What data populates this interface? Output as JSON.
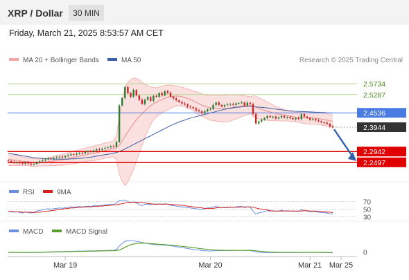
{
  "header": {
    "symbol": "XRP / Dollar",
    "interval": "30 MIN",
    "timestamp": "Friday, March 21, 2025 8:53:57 AM CET"
  },
  "colors": {
    "bollinger": "#f4a6a6",
    "ma50": "#3b5fa8",
    "candle_up": "#2e7d32",
    "candle_down": "#c62828",
    "resistance": "#b5d78f",
    "pivot": "#4a7be0",
    "support": "#e00000",
    "rsi": "#6b8ee0",
    "rsi_ma": "#d02020",
    "macd": "#6b8ee0",
    "macd_signal": "#5aa02c",
    "arrow": "#2f5fa8"
  },
  "chart_data": [
    {
      "type": "candlestick",
      "legend": [
        {
          "name": "MA 20 + Bollinger Bands",
          "color": "#f4a6a6"
        },
        {
          "name": "MA 50",
          "color": "#3b5fa8"
        }
      ],
      "credit": "Research © 2025 Trading Central",
      "x_ticks": [
        "Mar 19",
        "Mar 20",
        "Mar 21",
        "Mar 25"
      ],
      "ylim": [
        2.235,
        2.605
      ],
      "levels": [
        {
          "value": 2.5734,
          "label": "2.5734",
          "kind": "resistance"
        },
        {
          "value": 2.5287,
          "label": "2.5287",
          "kind": "resistance"
        },
        {
          "value": 2.4536,
          "label": "2.4536",
          "kind": "pivot"
        },
        {
          "value": 2.3944,
          "label": "2.3944",
          "kind": "last"
        },
        {
          "value": 2.2942,
          "label": "2.2942",
          "kind": "support"
        },
        {
          "value": 2.2497,
          "label": "2.2497",
          "kind": "support"
        }
      ],
      "close": [
        2.255,
        2.252,
        2.248,
        2.25,
        2.246,
        2.244,
        2.249,
        2.245,
        2.241,
        2.243,
        2.25,
        2.254,
        2.258,
        2.262,
        2.266,
        2.264,
        2.268,
        2.271,
        2.273,
        2.27,
        2.276,
        2.279,
        2.283,
        2.281,
        2.285,
        2.289,
        2.287,
        2.292,
        2.295,
        2.293,
        2.299,
        2.303,
        2.301,
        2.306,
        2.309,
        2.312,
        2.316,
        2.314,
        2.334,
        2.484,
        2.515,
        2.56,
        2.535,
        2.52,
        2.548,
        2.525,
        2.507,
        2.49,
        2.508,
        2.518,
        2.503,
        2.523,
        2.52,
        2.535,
        2.525,
        2.543,
        2.536,
        2.52,
        2.513,
        2.505,
        2.498,
        2.492,
        2.488,
        2.479,
        2.477,
        2.472,
        2.464,
        2.46,
        2.453,
        2.46,
        2.468,
        2.47,
        2.486,
        2.496,
        2.486,
        2.48,
        2.485,
        2.488,
        2.49,
        2.486,
        2.493,
        2.494,
        2.496,
        2.484,
        2.495,
        2.49,
        2.449,
        2.41,
        2.418,
        2.425,
        2.432,
        2.44,
        2.436,
        2.438,
        2.43,
        2.435,
        2.44,
        2.434,
        2.437,
        2.432,
        2.427,
        2.432,
        2.428,
        2.448,
        2.438,
        2.432,
        2.425,
        2.428,
        2.423,
        2.419,
        2.414,
        2.413,
        2.408,
        2.398,
        2.394
      ],
      "ma20": [
        2.262,
        2.261,
        2.259,
        2.258,
        2.256,
        2.254,
        2.253,
        2.252,
        2.25,
        2.249,
        2.249,
        2.249,
        2.25,
        2.251,
        2.252,
        2.254,
        2.255,
        2.257,
        2.259,
        2.26,
        2.263,
        2.265,
        2.268,
        2.27,
        2.272,
        2.275,
        2.277,
        2.28,
        2.283,
        2.285,
        2.287,
        2.29,
        2.292,
        2.295,
        2.298,
        2.3,
        2.303,
        2.305,
        2.31,
        2.32,
        2.337,
        2.357,
        2.375,
        2.392,
        2.409,
        2.425,
        2.438,
        2.45,
        2.462,
        2.473,
        2.483,
        2.491,
        2.497,
        2.503,
        2.508,
        2.513,
        2.517,
        2.52,
        2.522,
        2.523,
        2.522,
        2.52,
        2.517,
        2.513,
        2.508,
        2.503,
        2.497,
        2.491,
        2.485,
        2.481,
        2.477,
        2.474,
        2.473,
        2.472,
        2.471,
        2.471,
        2.471,
        2.472,
        2.474,
        2.476,
        2.478,
        2.48,
        2.482,
        2.483,
        2.484,
        2.485,
        2.482,
        2.477,
        2.472,
        2.468,
        2.464,
        2.46,
        2.457,
        2.454,
        2.451,
        2.448,
        2.446,
        2.444,
        2.442,
        2.44,
        2.438,
        2.436,
        2.435,
        2.435,
        2.434,
        2.433,
        2.433,
        2.432,
        2.431,
        2.43,
        2.428,
        2.426,
        2.424,
        2.421,
        2.418
      ],
      "bb_upper": [
        2.288,
        2.285,
        2.282,
        2.279,
        2.276,
        2.272,
        2.27,
        2.268,
        2.266,
        2.265,
        2.264,
        2.264,
        2.265,
        2.267,
        2.269,
        2.271,
        2.274,
        2.277,
        2.28,
        2.283,
        2.286,
        2.289,
        2.293,
        2.296,
        2.299,
        2.302,
        2.305,
        2.308,
        2.311,
        2.314,
        2.317,
        2.32,
        2.323,
        2.326,
        2.329,
        2.332,
        2.335,
        2.338,
        2.36,
        2.44,
        2.5,
        2.56,
        2.58,
        2.59,
        2.597,
        2.595,
        2.59,
        2.58,
        2.572,
        2.565,
        2.56,
        2.558,
        2.557,
        2.56,
        2.562,
        2.566,
        2.568,
        2.568,
        2.566,
        2.564,
        2.562,
        2.559,
        2.556,
        2.552,
        2.548,
        2.544,
        2.54,
        2.536,
        2.532,
        2.528,
        2.526,
        2.525,
        2.524,
        2.524,
        2.524,
        2.525,
        2.526,
        2.527,
        2.528,
        2.528,
        2.528,
        2.527,
        2.526,
        2.524,
        2.522,
        2.52,
        2.524,
        2.522,
        2.516,
        2.51,
        2.504,
        2.498,
        2.492,
        2.486,
        2.48,
        2.476,
        2.472,
        2.468,
        2.464,
        2.461,
        2.458,
        2.456,
        2.455,
        2.458,
        2.458,
        2.458,
        2.458,
        2.457,
        2.456,
        2.455,
        2.453,
        2.451,
        2.449,
        2.446,
        2.443
      ],
      "bb_lower": [
        2.236,
        2.237,
        2.236,
        2.237,
        2.236,
        2.236,
        2.236,
        2.236,
        2.234,
        2.233,
        2.234,
        2.234,
        2.235,
        2.235,
        2.235,
        2.237,
        2.236,
        2.237,
        2.238,
        2.237,
        2.24,
        2.241,
        2.243,
        2.244,
        2.245,
        2.248,
        2.249,
        2.252,
        2.255,
        2.256,
        2.257,
        2.26,
        2.261,
        2.264,
        2.267,
        2.268,
        2.271,
        2.272,
        2.26,
        2.2,
        2.174,
        2.154,
        2.17,
        2.194,
        2.221,
        2.255,
        2.286,
        2.32,
        2.352,
        2.381,
        2.406,
        2.424,
        2.437,
        2.446,
        2.454,
        2.46,
        2.466,
        2.472,
        2.478,
        2.482,
        2.482,
        2.481,
        2.478,
        2.474,
        2.468,
        2.462,
        2.454,
        2.446,
        2.438,
        2.434,
        2.428,
        2.423,
        2.422,
        2.42,
        2.418,
        2.417,
        2.416,
        2.417,
        2.42,
        2.424,
        2.428,
        2.433,
        2.438,
        2.442,
        2.446,
        2.45,
        2.44,
        2.432,
        2.428,
        2.426,
        2.424,
        2.422,
        2.422,
        2.422,
        2.422,
        2.42,
        2.42,
        2.42,
        2.42,
        2.419,
        2.418,
        2.416,
        2.415,
        2.412,
        2.41,
        2.408,
        2.408,
        2.407,
        2.406,
        2.405,
        2.403,
        2.401,
        2.399,
        2.396,
        2.393
      ],
      "ma50": [
        2.286,
        2.285,
        2.283,
        2.281,
        2.279,
        2.277,
        2.275,
        2.273,
        2.271,
        2.269,
        2.268,
        2.267,
        2.266,
        2.265,
        2.264,
        2.264,
        2.263,
        2.263,
        2.263,
        2.263,
        2.263,
        2.263,
        2.264,
        2.264,
        2.265,
        2.266,
        2.267,
        2.268,
        2.27,
        2.271,
        2.273,
        2.275,
        2.277,
        2.279,
        2.281,
        2.283,
        2.285,
        2.288,
        2.29,
        2.294,
        2.299,
        2.305,
        2.311,
        2.317,
        2.323,
        2.329,
        2.335,
        2.341,
        2.347,
        2.353,
        2.359,
        2.365,
        2.371,
        2.377,
        2.383,
        2.389,
        2.395,
        2.401,
        2.406,
        2.411,
        2.416,
        2.42,
        2.424,
        2.428,
        2.432,
        2.435,
        2.438,
        2.441,
        2.444,
        2.447,
        2.45,
        2.453,
        2.456,
        2.459,
        2.462,
        2.465,
        2.468,
        2.47,
        2.472,
        2.474,
        2.476,
        2.477,
        2.478,
        2.479,
        2.48,
        2.48,
        2.479,
        2.478,
        2.477,
        2.476,
        2.475,
        2.474,
        2.472,
        2.47,
        2.469,
        2.467,
        2.466,
        2.464,
        2.463,
        2.462,
        2.461,
        2.46,
        2.459,
        2.459,
        2.458,
        2.458,
        2.457,
        2.457,
        2.456,
        2.456,
        2.455,
        2.455,
        2.454,
        2.453,
        2.452
      ]
    },
    {
      "type": "line",
      "legend": [
        {
          "name": "RSI",
          "color": "#6b8ee0"
        },
        {
          "name": "9MA",
          "color": "#d02020"
        }
      ],
      "ylim": [
        22,
        78
      ],
      "y_ticks": [
        {
          "value": 70,
          "label": "70"
        },
        {
          "value": 50,
          "label": "50"
        },
        {
          "value": 30,
          "label": "30"
        }
      ],
      "rsi": [
        44,
        43,
        42,
        43,
        41,
        40,
        43,
        41,
        40,
        41,
        45,
        47,
        48,
        50,
        51,
        50,
        51,
        52,
        53,
        52,
        54,
        55,
        56,
        55,
        56,
        57,
        56,
        57,
        58,
        57,
        59,
        60,
        59,
        60,
        61,
        62,
        63,
        62,
        66,
        72,
        72,
        74,
        70,
        67,
        69,
        66,
        62,
        59,
        62,
        63,
        61,
        63,
        62,
        64,
        62,
        64,
        63,
        60,
        59,
        58,
        57,
        56,
        55,
        54,
        53,
        52,
        51,
        50,
        49,
        51,
        53,
        53,
        56,
        57,
        55,
        54,
        55,
        55,
        56,
        55,
        56,
        57,
        57,
        54,
        56,
        55,
        45,
        37,
        40,
        42,
        44,
        46,
        45,
        46,
        44,
        45,
        47,
        45,
        46,
        45,
        44,
        45,
        44,
        49,
        46,
        45,
        43,
        44,
        43,
        42,
        41,
        41,
        40,
        38,
        37
      ],
      "rsi_ma": [
        44,
        44,
        43,
        43,
        43,
        42,
        42,
        42,
        42,
        41,
        42,
        42,
        43,
        44,
        45,
        46,
        47,
        48,
        49,
        50,
        51,
        52,
        53,
        53,
        54,
        55,
        55,
        56,
        56,
        56,
        57,
        57,
        58,
        58,
        59,
        59,
        60,
        61,
        61,
        63,
        64,
        66,
        67,
        68,
        68,
        68,
        68,
        67,
        66,
        65,
        64,
        63,
        63,
        63,
        63,
        63,
        63,
        62,
        62,
        61,
        61,
        60,
        59,
        58,
        57,
        56,
        55,
        54,
        53,
        52,
        52,
        52,
        52,
        53,
        54,
        54,
        54,
        54,
        55,
        55,
        55,
        55,
        56,
        56,
        56,
        56,
        55,
        53,
        51,
        50,
        49,
        48,
        46,
        45,
        45,
        45,
        45,
        45,
        45,
        45,
        45,
        45,
        45,
        45,
        46,
        46,
        45,
        45,
        45,
        44,
        44,
        43,
        42,
        42,
        41
      ]
    },
    {
      "type": "line",
      "legend": [
        {
          "name": "MACD",
          "color": "#6b8ee0"
        },
        {
          "name": "MACD Signal",
          "color": "#5aa02c"
        }
      ],
      "ylim": [
        -0.014,
        0.042
      ],
      "y_ticks": [
        {
          "value": 0,
          "label": "0"
        }
      ],
      "macd": [
        -0.001,
        -0.0011,
        -0.0012,
        -0.0011,
        -0.0012,
        -0.0012,
        -0.0011,
        -0.0011,
        -0.0012,
        -0.0011,
        -0.0009,
        -0.0006,
        -0.0003,
        0.0,
        0.0003,
        0.0005,
        0.0008,
        0.001,
        0.0012,
        0.0013,
        0.0015,
        0.0017,
        0.0019,
        0.002,
        0.0022,
        0.0024,
        0.0025,
        0.0027,
        0.0029,
        0.003,
        0.0032,
        0.0034,
        0.0035,
        0.0037,
        0.0039,
        0.0041,
        0.0043,
        0.0044,
        0.007,
        0.016,
        0.023,
        0.029,
        0.031,
        0.0305,
        0.03,
        0.029,
        0.0275,
        0.0255,
        0.024,
        0.0228,
        0.0212,
        0.0205,
        0.0198,
        0.0195,
        0.0188,
        0.0185,
        0.0178,
        0.0168,
        0.0156,
        0.0145,
        0.0133,
        0.012,
        0.0108,
        0.0095,
        0.0083,
        0.0071,
        0.006,
        0.005,
        0.0038,
        0.0033,
        0.003,
        0.0028,
        0.0032,
        0.0036,
        0.0037,
        0.0038,
        0.004,
        0.0042,
        0.0043,
        0.0043,
        0.0045,
        0.0046,
        0.0047,
        0.0043,
        0.0042,
        0.004,
        0.0022,
        0.0003,
        -0.0006,
        -0.0012,
        -0.0015,
        -0.0016,
        -0.0017,
        -0.0016,
        -0.0017,
        -0.0016,
        -0.0014,
        -0.0014,
        -0.0013,
        -0.0013,
        -0.0014,
        -0.0013,
        -0.0013,
        -0.0008,
        -0.0007,
        -0.0007,
        -0.0008,
        -0.0008,
        -0.0009,
        -0.0011,
        -0.0013,
        -0.0014,
        -0.0016,
        -0.0019,
        -0.0022
      ],
      "macd_signal": [
        -0.0009,
        -0.0009,
        -0.001,
        -0.001,
        -0.001,
        -0.0011,
        -0.0011,
        -0.0011,
        -0.0011,
        -0.0011,
        -0.001,
        -0.0009,
        -0.0008,
        -0.0006,
        -0.0004,
        -0.0002,
        0.0,
        0.0002,
        0.0004,
        0.0006,
        0.0008,
        0.001,
        0.0012,
        0.0013,
        0.0015,
        0.0017,
        0.0018,
        0.002,
        0.0022,
        0.0023,
        0.0025,
        0.0027,
        0.0028,
        0.003,
        0.0032,
        0.0034,
        0.0035,
        0.0037,
        0.004,
        0.0055,
        0.0085,
        0.0125,
        0.0165,
        0.0195,
        0.0215,
        0.023,
        0.0238,
        0.024,
        0.0238,
        0.0234,
        0.0228,
        0.0222,
        0.0215,
        0.0209,
        0.0203,
        0.0197,
        0.0191,
        0.0185,
        0.0178,
        0.0171,
        0.0163,
        0.0155,
        0.0146,
        0.0137,
        0.0128,
        0.0118,
        0.0108,
        0.0098,
        0.0088,
        0.0079,
        0.007,
        0.0062,
        0.0056,
        0.0051,
        0.0048,
        0.0046,
        0.0045,
        0.0044,
        0.0044,
        0.0044,
        0.0044,
        0.0045,
        0.0045,
        0.0045,
        0.0045,
        0.0044,
        0.004,
        0.0033,
        0.0025,
        0.0017,
        0.001,
        0.0004,
        -0.0001,
        -0.0004,
        -0.0007,
        -0.0009,
        -0.001,
        -0.0011,
        -0.0012,
        -0.0012,
        -0.0013,
        -0.0013,
        -0.0013,
        -0.0012,
        -0.0011,
        -0.001,
        -0.001,
        -0.0009,
        -0.0009,
        -0.001,
        -0.001,
        -0.0011,
        -0.0012,
        -0.0014,
        -0.0016
      ]
    }
  ]
}
